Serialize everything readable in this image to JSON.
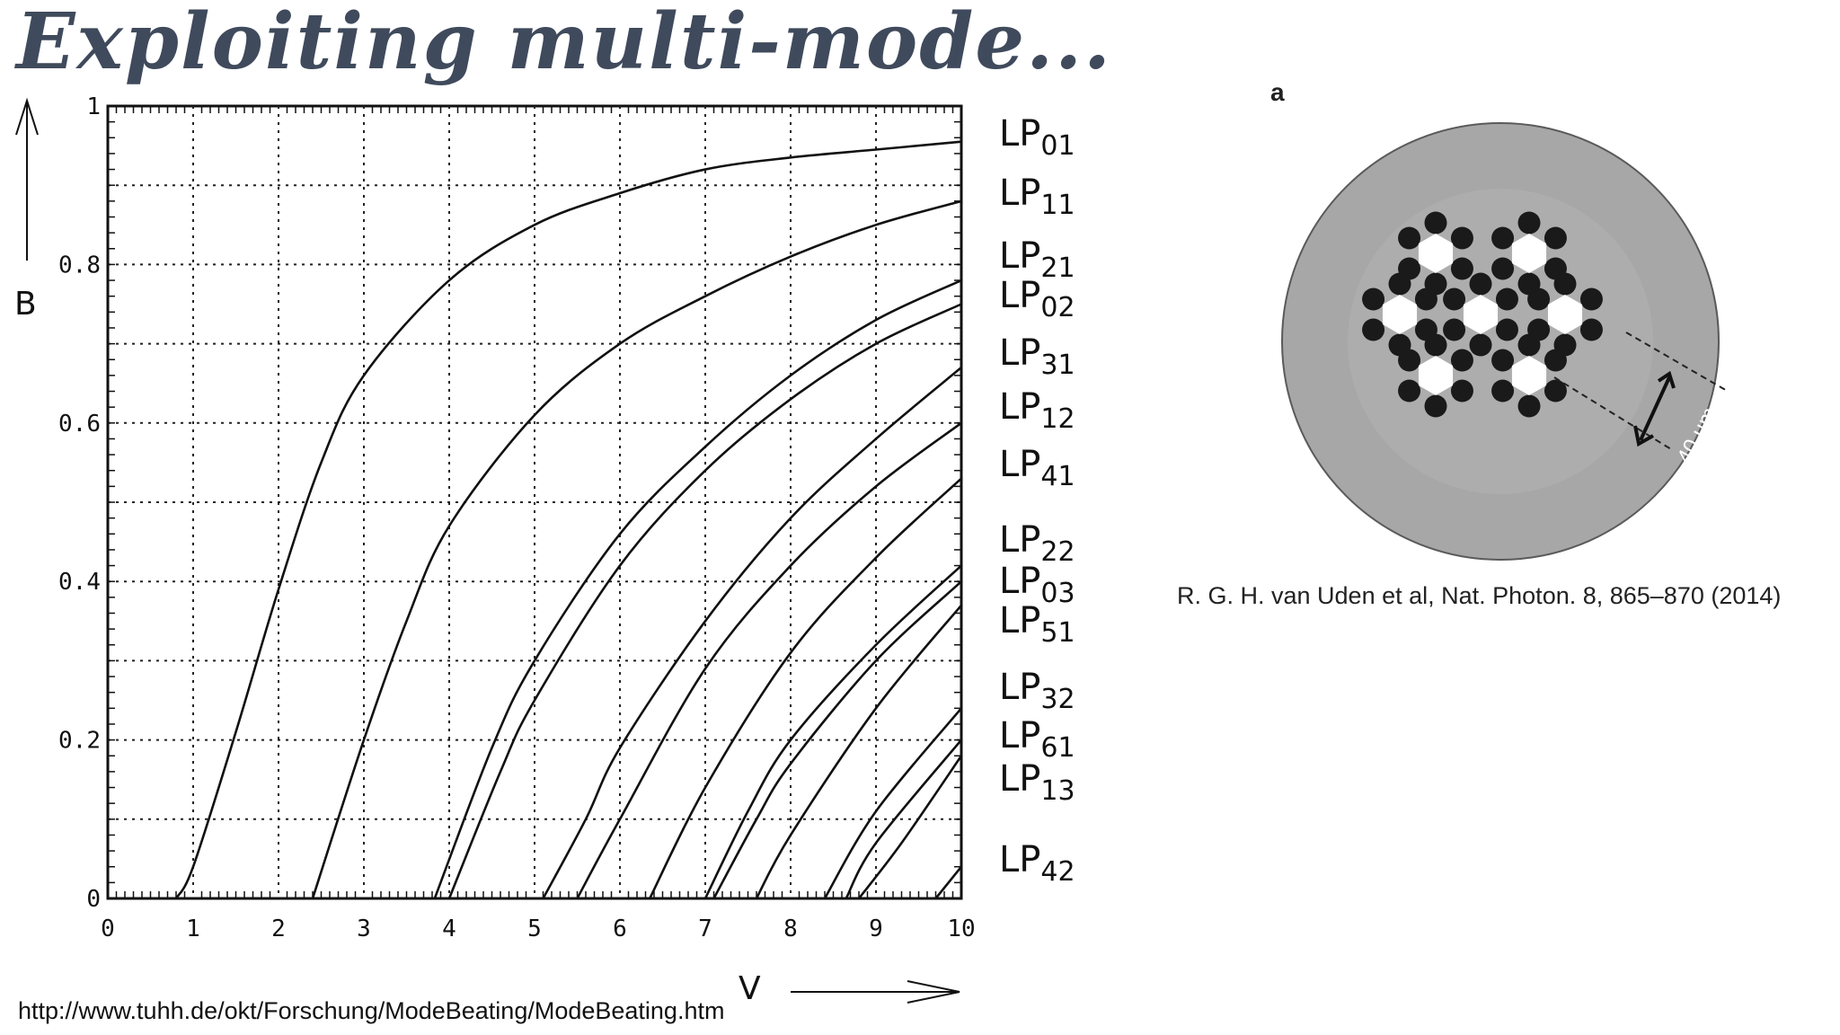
{
  "slide": {
    "title": "Exploiting multi-mode...",
    "source_url": "http://www.tuhh.de/okt/Forschung/ModeBeating/ModeBeating.htm",
    "citation": "R. G. H. van Uden et al, Nat. Photon. 8, 865–870 (2014)"
  },
  "figure": {
    "panel_label": "a",
    "scale_label": "40 µm",
    "colors": {
      "cladding": "#a7a7a7",
      "hole": "#1a1a1a",
      "core": "#ffffff"
    }
  },
  "chart_data": {
    "type": "line",
    "xlabel": "V",
    "ylabel": "B",
    "xlim": [
      0,
      10
    ],
    "ylim": [
      0,
      1
    ],
    "x_ticks": [
      "0",
      "1",
      "2",
      "3",
      "4",
      "5",
      "6",
      "7",
      "8",
      "9",
      "10"
    ],
    "y_ticks": [
      "0",
      "0.2",
      "0.4",
      "0.6",
      "0.8",
      "1"
    ],
    "grid": true,
    "line_color": "#111111",
    "series": [
      {
        "name": "LP01",
        "points": [
          [
            0.8,
            0
          ],
          [
            1,
            0.04
          ],
          [
            1.5,
            0.21
          ],
          [
            2,
            0.39
          ],
          [
            2.5,
            0.55
          ],
          [
            3,
            0.66
          ],
          [
            4,
            0.78
          ],
          [
            5,
            0.85
          ],
          [
            6,
            0.89
          ],
          [
            7,
            0.92
          ],
          [
            8,
            0.935
          ],
          [
            9,
            0.945
          ],
          [
            10,
            0.955
          ]
        ]
      },
      {
        "name": "LP11",
        "points": [
          [
            2.4,
            0
          ],
          [
            3,
            0.2
          ],
          [
            3.5,
            0.35
          ],
          [
            4,
            0.47
          ],
          [
            5,
            0.61
          ],
          [
            6,
            0.7
          ],
          [
            7,
            0.76
          ],
          [
            8,
            0.81
          ],
          [
            9,
            0.85
          ],
          [
            10,
            0.88
          ]
        ]
      },
      {
        "name": "LP21",
        "points": [
          [
            3.83,
            0
          ],
          [
            4.5,
            0.19
          ],
          [
            5,
            0.3
          ],
          [
            6,
            0.46
          ],
          [
            7,
            0.57
          ],
          [
            8,
            0.66
          ],
          [
            9,
            0.73
          ],
          [
            10,
            0.78
          ]
        ]
      },
      {
        "name": "LP02",
        "points": [
          [
            4,
            0
          ],
          [
            4.6,
            0.16
          ],
          [
            5,
            0.25
          ],
          [
            6,
            0.42
          ],
          [
            7,
            0.54
          ],
          [
            8,
            0.63
          ],
          [
            9,
            0.7
          ],
          [
            10,
            0.75
          ]
        ]
      },
      {
        "name": "LP31",
        "points": [
          [
            5.1,
            0
          ],
          [
            5.6,
            0.1
          ],
          [
            6,
            0.19
          ],
          [
            7,
            0.35
          ],
          [
            8,
            0.48
          ],
          [
            9,
            0.58
          ],
          [
            10,
            0.67
          ]
        ]
      },
      {
        "name": "LP12",
        "points": [
          [
            5.5,
            0
          ],
          [
            6,
            0.1
          ],
          [
            7,
            0.29
          ],
          [
            8,
            0.42
          ],
          [
            9,
            0.52
          ],
          [
            10,
            0.6
          ]
        ]
      },
      {
        "name": "LP41",
        "points": [
          [
            6.35,
            0
          ],
          [
            7,
            0.14
          ],
          [
            8,
            0.31
          ],
          [
            9,
            0.43
          ],
          [
            10,
            0.53
          ]
        ]
      },
      {
        "name": "LP22",
        "points": [
          [
            7.0,
            0
          ],
          [
            7.5,
            0.11
          ],
          [
            8,
            0.2
          ],
          [
            9,
            0.32
          ],
          [
            10,
            0.42
          ]
        ]
      },
      {
        "name": "LP03",
        "points": [
          [
            7.1,
            0
          ],
          [
            7.6,
            0.1
          ],
          [
            8,
            0.17
          ],
          [
            9,
            0.3
          ],
          [
            10,
            0.4
          ]
        ]
      },
      {
        "name": "LP51",
        "points": [
          [
            7.6,
            0
          ],
          [
            8,
            0.08
          ],
          [
            9,
            0.24
          ],
          [
            10,
            0.37
          ]
        ]
      },
      {
        "name": "LP32",
        "points": [
          [
            8.4,
            0
          ],
          [
            9,
            0.11
          ],
          [
            10,
            0.24
          ]
        ]
      },
      {
        "name": "LP61",
        "points": [
          [
            8.65,
            0
          ],
          [
            9,
            0.07
          ],
          [
            10,
            0.2
          ]
        ]
      },
      {
        "name": "LP13",
        "points": [
          [
            8.8,
            0
          ],
          [
            9.3,
            0.07
          ],
          [
            10,
            0.18
          ]
        ]
      },
      {
        "name": "LP42",
        "points": [
          [
            9.7,
            0
          ],
          [
            10,
            0.04
          ]
        ]
      }
    ]
  }
}
